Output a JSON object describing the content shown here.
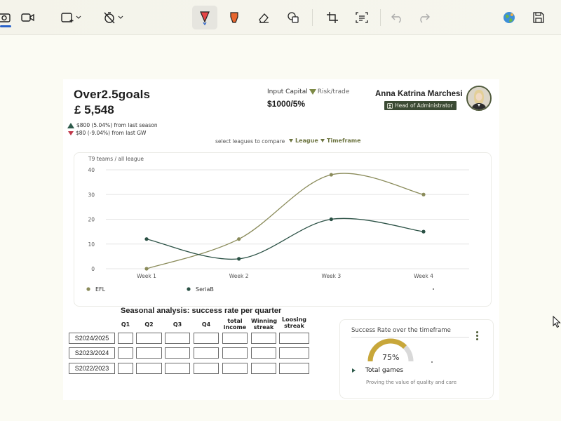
{
  "toolbar": {
    "tools": [
      "camera-icon",
      "video-icon",
      "rect-select-icon",
      "timer-off-icon",
      "pen-red-icon",
      "highlighter-icon",
      "eraser-icon",
      "shapes-icon",
      "crop-icon",
      "text-extract-icon",
      "undo-icon",
      "redo-icon",
      "globe-icon",
      "save-icon"
    ],
    "active_tool": "pen-red-icon"
  },
  "header": {
    "brand": "Over2.5goals",
    "balance": "£ 5,548",
    "delta_up": "$800 (5.04%) from last season",
    "delta_down": "$80 (-9.04%) from last GW"
  },
  "capital": {
    "label_input": "Input Capital",
    "label_risk": "Risk/trade",
    "value": "$1000/5%"
  },
  "user": {
    "name": "Anna Katrina Marchesi",
    "role": "Head of Administrator"
  },
  "filters": {
    "compare_text": "select leagues to compare",
    "league": "League",
    "timeframe": "Timeframe"
  },
  "chart_data": {
    "type": "line",
    "title": "T9 teams  / all league",
    "categories": [
      "Week 1",
      "Week 2",
      "Week 3",
      "Week 4"
    ],
    "series": [
      {
        "name": "EFL",
        "color": "#8a8b5a",
        "values": [
          0,
          12,
          38,
          30
        ]
      },
      {
        "name": "SeriaB",
        "color": "#2b5145",
        "values": [
          12,
          4,
          20,
          15
        ]
      }
    ],
    "ylim": [
      0,
      40
    ],
    "yticks": [
      0,
      10,
      20,
      30,
      40
    ],
    "grid": true,
    "legend": "bottom-left"
  },
  "season": {
    "title": "Seasonal analysis: success rate per quarter",
    "columns": [
      "Q1",
      "Q2",
      "Q3",
      "Q4",
      "total income",
      "Winning streak",
      "Loosing streak"
    ],
    "rows": [
      "S2024/2025",
      "S2023/2024",
      "S2022/2023"
    ]
  },
  "rate": {
    "title": "Success Rate over the timeframe",
    "value": "75%",
    "percent": 75,
    "total_games": "Total games",
    "subtitle": "Proving the value of quality and care",
    "gauge_color": "#c8a73a",
    "track_color": "#d9d9d9"
  }
}
